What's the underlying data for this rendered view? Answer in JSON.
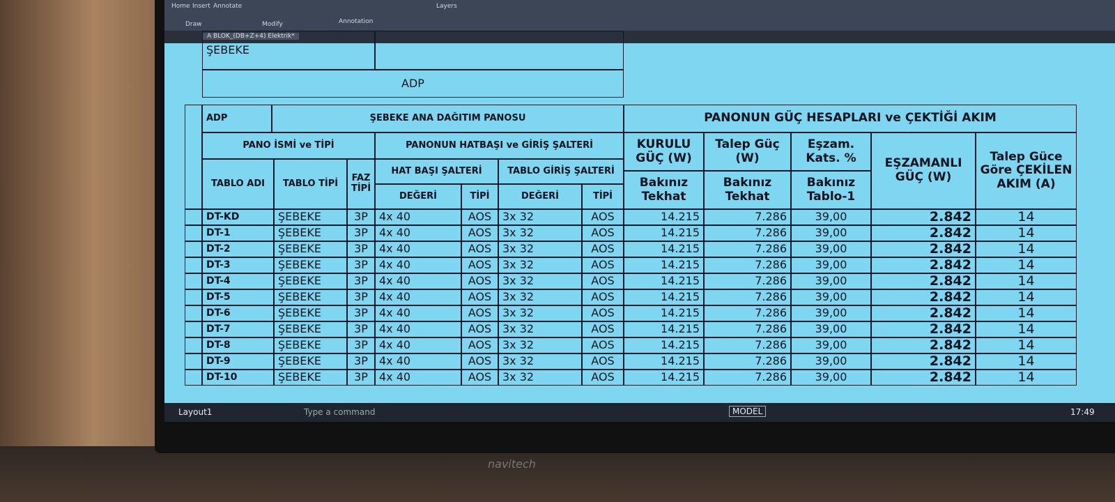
{
  "ribbon": {
    "tabs": [
      "Home",
      "Insert",
      "Annotate"
    ],
    "panels": [
      "Draw",
      "Modify",
      "Annotation",
      "Layers"
    ]
  },
  "file_tab": "A BLOK_(DB+Z+4) Elektrik*",
  "previous_table": {
    "label": "ADP",
    "type": "ŞEBEKE"
  },
  "table": {
    "code": "ADP",
    "title": "ŞEBEKE ANA DAĞITIM PANOSU",
    "power_title": "PANONUN GÜÇ HESAPLARI ve ÇEKTİĞİ AKIM",
    "headers": {
      "pano": "PANO İSMİ ve TİPİ",
      "hatbasi_giris": "PANONUN HATBAŞI ve GİRİŞ ŞALTERİ",
      "kurulu": "KURULU GÜÇ (W)",
      "talep": "Talep Güç (W)",
      "eszam": "Eşzam. Kats. %",
      "eszamanli": "EŞZAMANLI GÜÇ (W)",
      "akim": "Talep Güce Göre ÇEKİLEN AKIM (A)",
      "hat_basi": "HAT BAŞI ŞALTERİ",
      "tablo_giris": "TABLO GİRİŞ ŞALTERİ",
      "bakiniz_1": "Bakınız Tekhat",
      "bakiniz_2": "Bakınız Tekhat",
      "bakiniz_3": "Bakınız Tablo-1",
      "tablo_adi": "TABLO ADI",
      "tablo_tipi": "TABLO TİPİ",
      "faz": "FAZ TİPİ",
      "degeri_1": "DEĞERİ",
      "tipi_1": "TİPİ",
      "degeri_2": "DEĞERİ",
      "tipi_2": "TİPİ"
    },
    "rows": [
      [
        "DT-KD",
        "ŞEBEKE",
        "3P",
        "4x 40",
        "AOS",
        "3x 32",
        "AOS",
        "14.215",
        "7.286",
        "39,00",
        "2.842",
        "14"
      ],
      [
        "DT-1",
        "ŞEBEKE",
        "3P",
        "4x 40",
        "AOS",
        "3x 32",
        "AOS",
        "14.215",
        "7.286",
        "39,00",
        "2.842",
        "14"
      ],
      [
        "DT-2",
        "ŞEBEKE",
        "3P",
        "4x 40",
        "AOS",
        "3x 32",
        "AOS",
        "14.215",
        "7.286",
        "39,00",
        "2.842",
        "14"
      ],
      [
        "DT-3",
        "ŞEBEKE",
        "3P",
        "4x 40",
        "AOS",
        "3x 32",
        "AOS",
        "14.215",
        "7.286",
        "39,00",
        "2.842",
        "14"
      ],
      [
        "DT-4",
        "ŞEBEKE",
        "3P",
        "4x 40",
        "AOS",
        "3x 32",
        "AOS",
        "14.215",
        "7.286",
        "39,00",
        "2.842",
        "14"
      ],
      [
        "DT-5",
        "ŞEBEKE",
        "3P",
        "4x 40",
        "AOS",
        "3x 32",
        "AOS",
        "14.215",
        "7.286",
        "39,00",
        "2.842",
        "14"
      ],
      [
        "DT-6",
        "ŞEBEKE",
        "3P",
        "4x 40",
        "AOS",
        "3x 32",
        "AOS",
        "14.215",
        "7.286",
        "39,00",
        "2.842",
        "14"
      ],
      [
        "DT-7",
        "ŞEBEKE",
        "3P",
        "4x 40",
        "AOS",
        "3x 32",
        "AOS",
        "14.215",
        "7.286",
        "39,00",
        "2.842",
        "14"
      ],
      [
        "DT-8",
        "ŞEBEKE",
        "3P",
        "4x 40",
        "AOS",
        "3x 32",
        "AOS",
        "14.215",
        "7.286",
        "39,00",
        "2.842",
        "14"
      ],
      [
        "DT-9",
        "ŞEBEKE",
        "3P",
        "4x 40",
        "AOS",
        "3x 32",
        "AOS",
        "14.215",
        "7.286",
        "39,00",
        "2.842",
        "14"
      ],
      [
        "DT-10",
        "ŞEBEKE",
        "3P",
        "4x 40",
        "AOS",
        "3x 32",
        "AOS",
        "14.215",
        "7.286",
        "39,00",
        "2.842",
        "14"
      ]
    ]
  },
  "status": {
    "layout": "Layout1",
    "command": "Type a command",
    "model": "MODEL",
    "time": "17:49"
  },
  "monitor_brand": "navitech"
}
